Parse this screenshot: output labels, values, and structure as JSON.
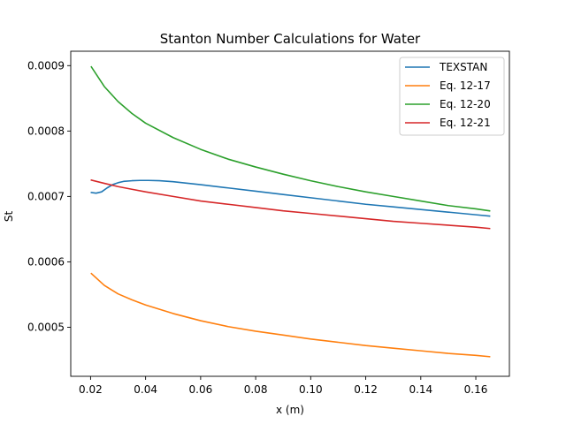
{
  "chart_data": {
    "type": "line",
    "title": "Stanton Number Calculations for Water",
    "xlabel": "x (m)",
    "ylabel": "St",
    "xlim": [
      0.0128,
      0.1722
    ],
    "ylim": [
      0.000425,
      0.000922
    ],
    "xticks": [
      0.02,
      0.04,
      0.06,
      0.08,
      0.1,
      0.12,
      0.14,
      0.16
    ],
    "xtick_labels": [
      "0.02",
      "0.04",
      "0.06",
      "0.08",
      "0.10",
      "0.12",
      "0.14",
      "0.16"
    ],
    "yticks": [
      0.0005,
      0.0006,
      0.0007,
      0.0008,
      0.0009
    ],
    "ytick_labels": [
      "0.0005",
      "0.0006",
      "0.0007",
      "0.0008",
      "0.0009"
    ],
    "grid": false,
    "legend_position": "top-right",
    "series": [
      {
        "name": "TEXSTAN",
        "color": "#1f77b4",
        "x": [
          0.0203,
          0.022,
          0.024,
          0.026,
          0.028,
          0.03,
          0.032,
          0.035,
          0.038,
          0.041,
          0.045,
          0.05,
          0.06,
          0.07,
          0.08,
          0.09,
          0.1,
          0.11,
          0.12,
          0.13,
          0.14,
          0.15,
          0.16,
          0.165
        ],
        "y": [
          0.000706,
          0.000705,
          0.000707,
          0.000713,
          0.000718,
          0.000721,
          0.000723,
          0.000724,
          0.0007245,
          0.0007245,
          0.000724,
          0.0007225,
          0.000718,
          0.000713,
          0.000708,
          0.000703,
          0.000698,
          0.000693,
          0.000688,
          0.000684,
          0.00068,
          0.000676,
          0.000672,
          0.00067
        ]
      },
      {
        "name": "Eq. 12-17",
        "color": "#ff7f0e",
        "x": [
          0.0203,
          0.025,
          0.03,
          0.035,
          0.04,
          0.05,
          0.06,
          0.07,
          0.08,
          0.09,
          0.1,
          0.11,
          0.12,
          0.13,
          0.14,
          0.15,
          0.16,
          0.165
        ],
        "y": [
          0.000582,
          0.000564,
          0.000551,
          0.000542,
          0.000534,
          0.000521,
          0.00051,
          0.000501,
          0.000494,
          0.000488,
          0.000482,
          0.000477,
          0.000472,
          0.000468,
          0.000464,
          0.00046,
          0.000457,
          0.000455
        ]
      },
      {
        "name": "Eq. 12-20",
        "color": "#2ca02c",
        "x": [
          0.0203,
          0.025,
          0.03,
          0.035,
          0.04,
          0.05,
          0.06,
          0.07,
          0.08,
          0.09,
          0.1,
          0.11,
          0.12,
          0.13,
          0.14,
          0.15,
          0.16,
          0.165
        ],
        "y": [
          0.000898,
          0.000868,
          0.000845,
          0.000827,
          0.000812,
          0.00079,
          0.000772,
          0.000757,
          0.000745,
          0.000734,
          0.000724,
          0.000715,
          0.000707,
          0.0007,
          0.000693,
          0.000686,
          0.000681,
          0.000678
        ]
      },
      {
        "name": "Eq. 12-21",
        "color": "#d62728",
        "x": [
          0.0203,
          0.025,
          0.03,
          0.035,
          0.04,
          0.05,
          0.06,
          0.07,
          0.08,
          0.09,
          0.1,
          0.11,
          0.12,
          0.13,
          0.14,
          0.15,
          0.16,
          0.165
        ],
        "y": [
          0.000725,
          0.00072,
          0.000715,
          0.000711,
          0.000707,
          0.0007,
          0.000693,
          0.000688,
          0.000683,
          0.000678,
          0.000674,
          0.00067,
          0.000666,
          0.000662,
          0.000659,
          0.000656,
          0.000653,
          0.000651
        ]
      }
    ]
  }
}
